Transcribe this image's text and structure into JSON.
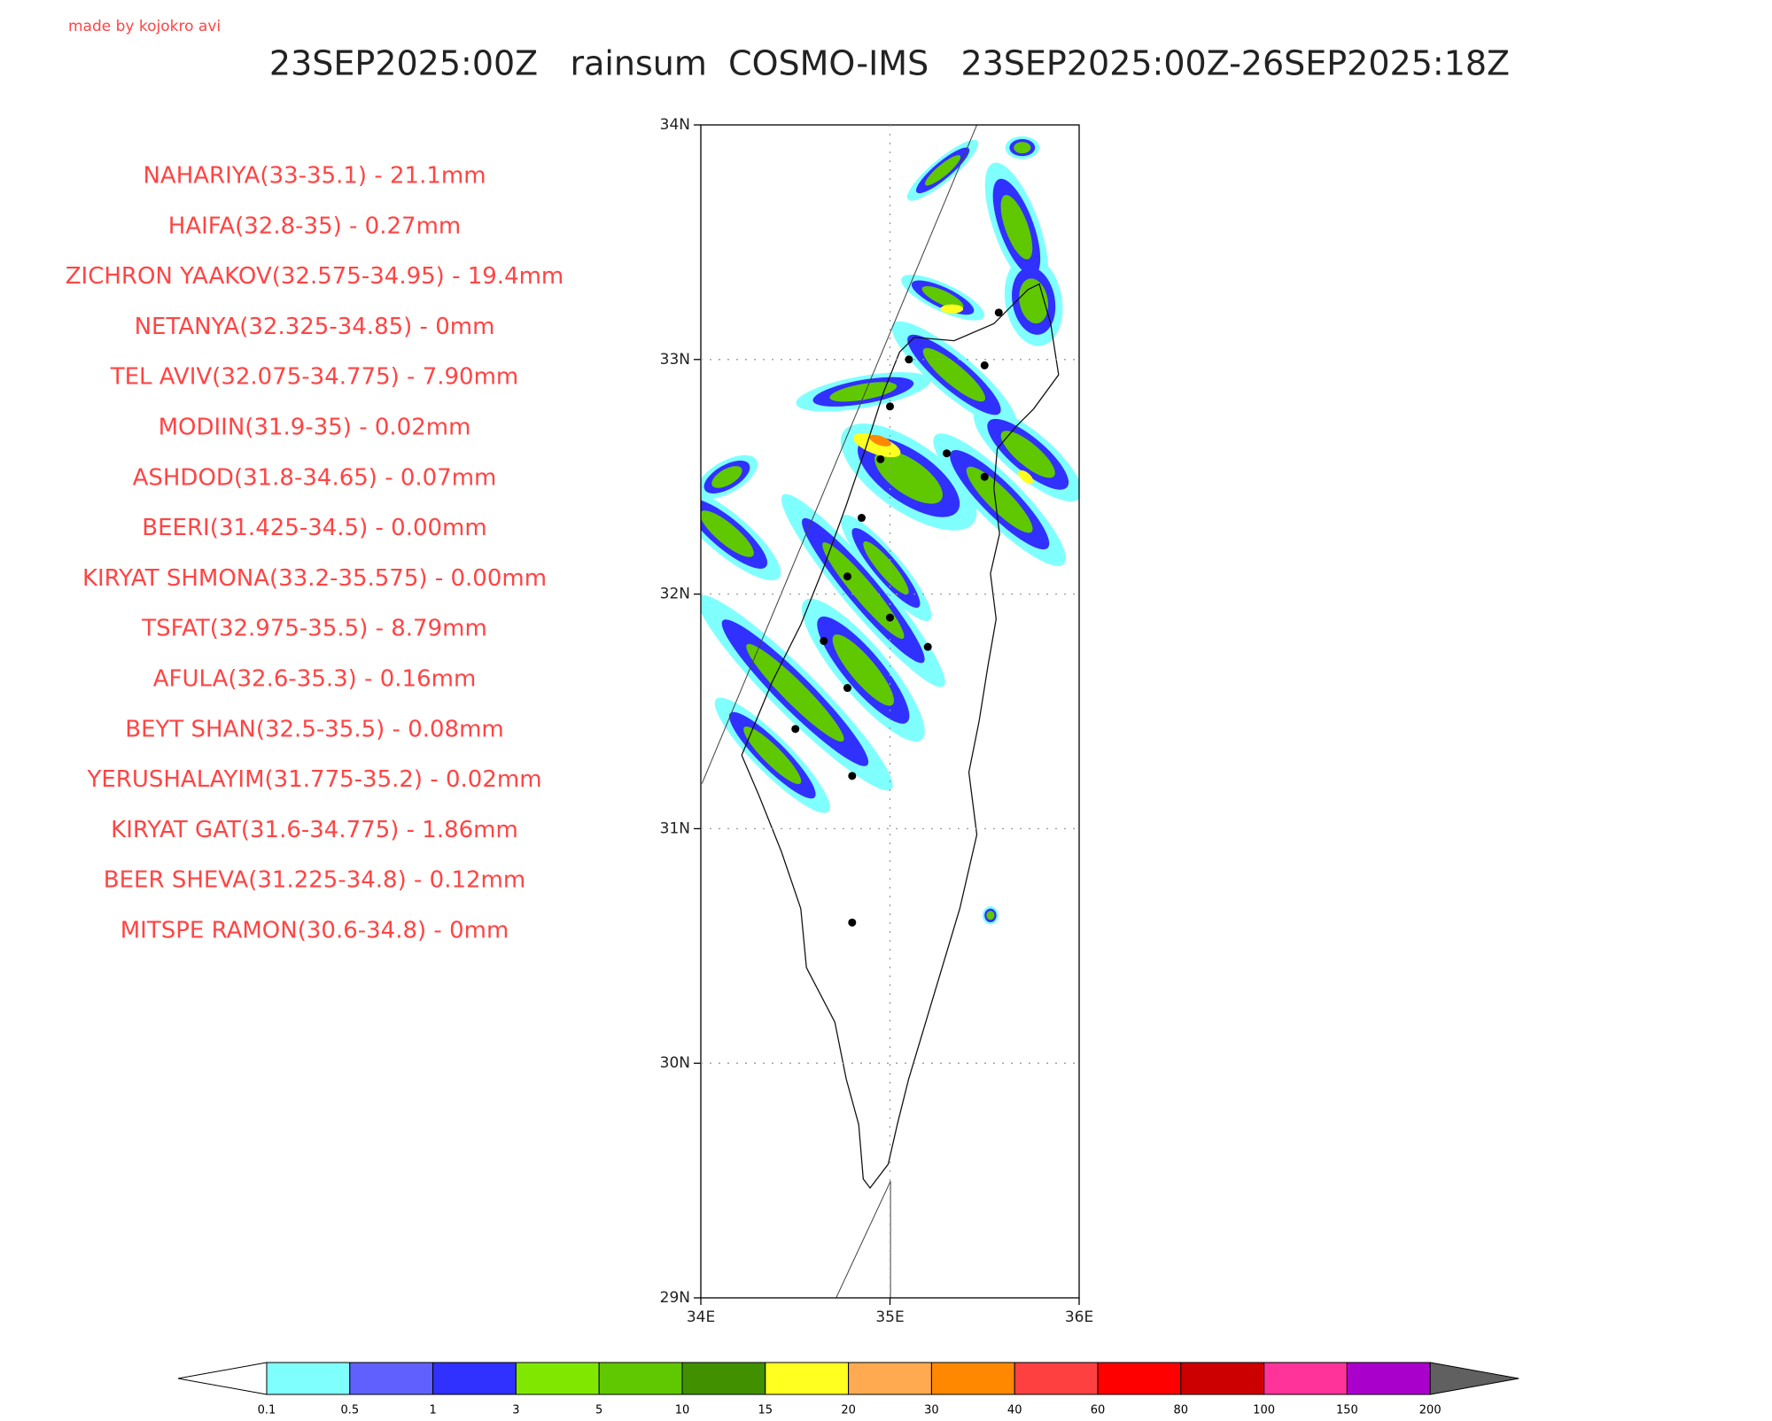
{
  "chart_data": {
    "type": "map",
    "credit": "made by kojokro avi",
    "title": "23SEP2025:00Z   rainsum  COSMO-IMS   23SEP2025:00Z-26SEP2025:18Z",
    "stations": [
      {
        "label": "NAHARIYA(33-35.1) - 21.1mm",
        "lat": 33,
        "lon": 35.1
      },
      {
        "label": "HAIFA(32.8-35) - 0.27mm",
        "lat": 32.8,
        "lon": 35
      },
      {
        "label": "ZICHRON YAAKOV(32.575-34.95) - 19.4mm",
        "lat": 32.575,
        "lon": 34.95
      },
      {
        "label": "NETANYA(32.325-34.85) - 0mm",
        "lat": 32.325,
        "lon": 34.85
      },
      {
        "label": "TEL AVIV(32.075-34.775) - 7.90mm",
        "lat": 32.075,
        "lon": 34.775
      },
      {
        "label": "MODIIN(31.9-35) - 0.02mm",
        "lat": 31.9,
        "lon": 35
      },
      {
        "label": "ASHDOD(31.8-34.65) - 0.07mm",
        "lat": 31.8,
        "lon": 34.65
      },
      {
        "label": "BEERI(31.425-34.5) - 0.00mm",
        "lat": 31.425,
        "lon": 34.5
      },
      {
        "label": "KIRYAT SHMONA(33.2-35.575) - 0.00mm",
        "lat": 33.2,
        "lon": 35.575
      },
      {
        "label": "TSFAT(32.975-35.5) - 8.79mm",
        "lat": 32.975,
        "lon": 35.5
      },
      {
        "label": "AFULA(32.6-35.3) - 0.16mm",
        "lat": 32.6,
        "lon": 35.3
      },
      {
        "label": "BEYT SHAN(32.5-35.5) - 0.08mm",
        "lat": 32.5,
        "lon": 35.5
      },
      {
        "label": "YERUSHALAYIM(31.775-35.2) - 0.02mm",
        "lat": 31.775,
        "lon": 35.2
      },
      {
        "label": "KIRYAT GAT(31.6-34.775) - 1.86mm",
        "lat": 31.6,
        "lon": 34.775
      },
      {
        "label": "BEER SHEVA(31.225-34.8) - 0.12mm",
        "lat": 31.225,
        "lon": 34.8
      },
      {
        "label": "MITSPE RAMON(30.6-34.8) - 0mm",
        "lat": 30.6,
        "lon": 34.8
      }
    ],
    "xlim": [
      34,
      36
    ],
    "ylim": [
      29,
      34
    ],
    "xticks": [
      {
        "value": 34,
        "label": "34E"
      },
      {
        "value": 35,
        "label": "35E"
      },
      {
        "value": 36,
        "label": "36E"
      }
    ],
    "yticks": [
      {
        "value": 29,
        "label": "29N"
      },
      {
        "value": 30,
        "label": "30N"
      },
      {
        "value": 31,
        "label": "31N"
      },
      {
        "value": 32,
        "label": "32N"
      },
      {
        "value": 33,
        "label": "33N"
      },
      {
        "value": 34,
        "label": "34N"
      }
    ],
    "color_levels": [
      0.1,
      0.5,
      1,
      3,
      5,
      10,
      15,
      20,
      30,
      40,
      60,
      80,
      100,
      150,
      200
    ],
    "colors": [
      "#80ffff",
      "#6060ff",
      "#3030ff",
      "#80e800",
      "#60c800",
      "#409000",
      "#ffff20",
      "#ffaa50",
      "#ff8800",
      "#ff4040",
      "#ff0000",
      "#cc0000",
      "#ff3399",
      "#aa00cc"
    ],
    "under_color": "#ffffff",
    "over_color": "#606060"
  }
}
